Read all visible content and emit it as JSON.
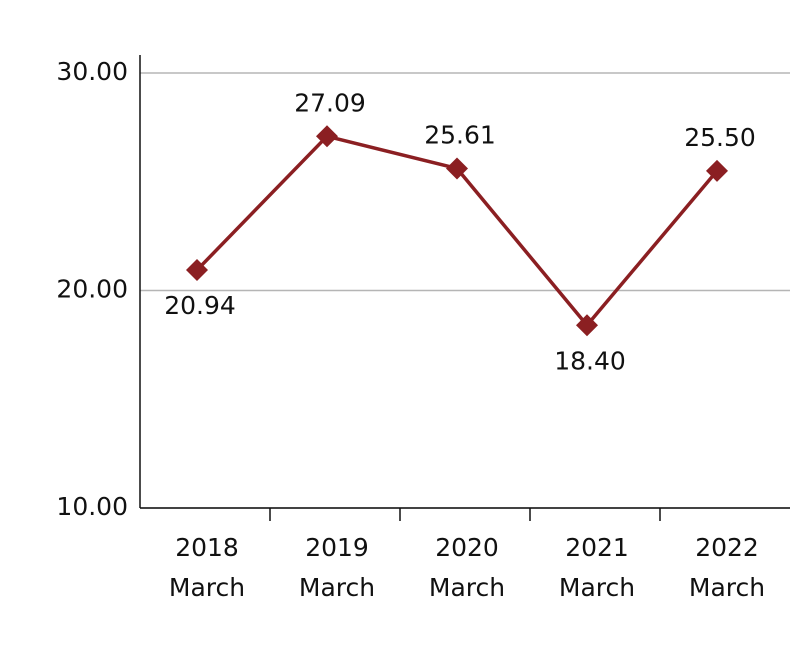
{
  "chart_data": {
    "type": "line",
    "categories": [
      [
        "2018",
        "March"
      ],
      [
        "2019",
        "March"
      ],
      [
        "2020",
        "March"
      ],
      [
        "2021",
        "March"
      ],
      [
        "2022",
        "March"
      ]
    ],
    "series": [
      {
        "color": "#8b1f22",
        "values": [
          20.94,
          27.09,
          25.61,
          18.4,
          25.5
        ],
        "value_labels": [
          "20.94",
          "27.09",
          "25.61",
          "18.40",
          "25.50"
        ]
      }
    ],
    "ylim": [
      10,
      30
    ],
    "yticks": [
      {
        "value": 10,
        "label": "10.00"
      },
      {
        "value": 20,
        "label": "20.00"
      },
      {
        "value": 30,
        "label": "30.00"
      }
    ],
    "grid": true
  }
}
